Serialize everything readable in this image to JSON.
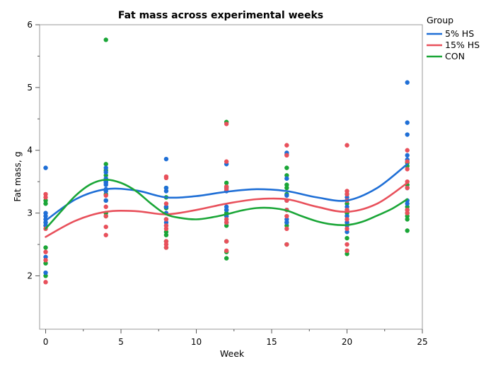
{
  "chart_data": {
    "type": "scatter",
    "title": "Fat mass across experimental weeks",
    "xlabel": "Week",
    "ylabel": "Fat mass, g",
    "xlim": [
      -0.4,
      25
    ],
    "ylim": [
      1.15,
      6
    ],
    "xticks": [
      0,
      5,
      10,
      15,
      20,
      25
    ],
    "xtick_labels": [
      "0",
      "5",
      "10",
      "15",
      "20",
      "25"
    ],
    "yticks": [
      2,
      3,
      4,
      5,
      6
    ],
    "ytick_labels": [
      "2",
      "3",
      "4",
      "5",
      "6"
    ],
    "grid": false,
    "legend": {
      "title": "Group",
      "placement": "top-right-outside"
    },
    "series": [
      {
        "name": "5% HS",
        "color": "#1f6fd6",
        "points": {
          "0": [
            3.72,
            3.0,
            2.95,
            2.9,
            2.85,
            2.8,
            2.3,
            2.05
          ],
          "4": [
            3.72,
            3.65,
            3.55,
            3.5,
            3.48,
            3.45,
            3.38,
            3.35,
            3.2
          ],
          "8": [
            3.86,
            3.4,
            3.35,
            3.1,
            3.0,
            2.9,
            2.85,
            2.8
          ],
          "12": [
            3.78,
            3.4,
            3.35,
            3.1,
            3.05,
            2.95,
            2.85
          ],
          "16": [
            3.96,
            3.93,
            3.55,
            3.28,
            3.2,
            3.05,
            2.9,
            2.85
          ],
          "20": [
            3.25,
            3.2,
            3.1,
            3.05,
            2.95,
            2.85,
            2.8,
            2.7
          ],
          "24": [
            5.08,
            4.44,
            4.25,
            3.92,
            3.85,
            3.4,
            3.2,
            3.15
          ]
        },
        "trend_x": [
          0,
          2,
          4,
          6,
          8,
          10,
          12,
          14,
          16,
          18,
          20,
          22,
          24
        ],
        "trend_y": [
          2.88,
          3.22,
          3.38,
          3.36,
          3.25,
          3.27,
          3.34,
          3.38,
          3.35,
          3.25,
          3.2,
          3.4,
          3.78
        ]
      },
      {
        "name": "15% HS",
        "color": "#e8505b",
        "points": {
          "0": [
            3.3,
            3.25,
            2.75,
            2.38,
            2.25,
            1.9
          ],
          "4": [
            3.28,
            3.1,
            2.95,
            2.78,
            2.65
          ],
          "8": [
            3.58,
            3.56,
            3.15,
            2.9,
            2.8,
            2.75,
            2.55,
            2.5,
            2.45
          ],
          "12": [
            4.42,
            3.82,
            3.42,
            3.38,
            2.9,
            2.85,
            2.55,
            2.4
          ],
          "16": [
            4.08,
            3.92,
            3.2,
            3.05,
            2.95,
            2.75,
            2.5
          ],
          "20": [
            4.08,
            3.35,
            3.3,
            3.2,
            3.05,
            2.9,
            2.75,
            2.5,
            2.4
          ],
          "24": [
            4.0,
            3.82,
            3.7,
            3.5,
            3.4,
            3.05,
            3.0
          ]
        },
        "trend_x": [
          0,
          2,
          4,
          6,
          8,
          10,
          12,
          14,
          16,
          18,
          20,
          22,
          24
        ],
        "trend_y": [
          2.62,
          2.88,
          3.02,
          3.03,
          2.98,
          3.05,
          3.15,
          3.22,
          3.22,
          3.1,
          3.02,
          3.15,
          3.48
        ]
      },
      {
        "name": "CON",
        "color": "#1aa637",
        "points": {
          "0": [
            3.2,
            3.15,
            2.85,
            2.8,
            2.45,
            2.2,
            2.0
          ],
          "4": [
            5.76,
            3.78,
            3.68,
            3.6,
            3.5,
            3.3,
            3.2,
            3.0,
            2.95
          ],
          "8": [
            3.4,
            3.25,
            3.1,
            3.08,
            2.7,
            2.65,
            2.55,
            2.45
          ],
          "12": [
            4.45,
            3.48,
            3.42,
            3.05,
            3.0,
            2.95,
            2.8,
            2.55,
            2.38,
            2.28
          ],
          "16": [
            3.72,
            3.6,
            3.45,
            3.4,
            3.3,
            3.05,
            2.85,
            2.8,
            2.5
          ],
          "20": [
            3.3,
            3.15,
            3.0,
            2.95,
            2.85,
            2.6,
            2.4,
            2.35
          ],
          "24": [
            3.8,
            3.75,
            3.45,
            3.1,
            3.05,
            3.0,
            2.95,
            2.9,
            2.72
          ]
        },
        "trend_x": [
          0,
          1,
          2,
          3,
          4,
          5,
          6,
          7,
          8,
          9,
          10,
          11,
          12,
          13,
          14,
          15,
          16,
          17,
          18,
          19,
          20,
          21,
          22,
          23,
          24
        ],
        "trend_y": [
          2.75,
          3.02,
          3.28,
          3.46,
          3.53,
          3.48,
          3.35,
          3.15,
          2.98,
          2.92,
          2.9,
          2.93,
          2.98,
          3.04,
          3.08,
          3.08,
          3.04,
          2.95,
          2.87,
          2.82,
          2.81,
          2.86,
          2.96,
          3.07,
          3.22
        ]
      }
    ]
  }
}
